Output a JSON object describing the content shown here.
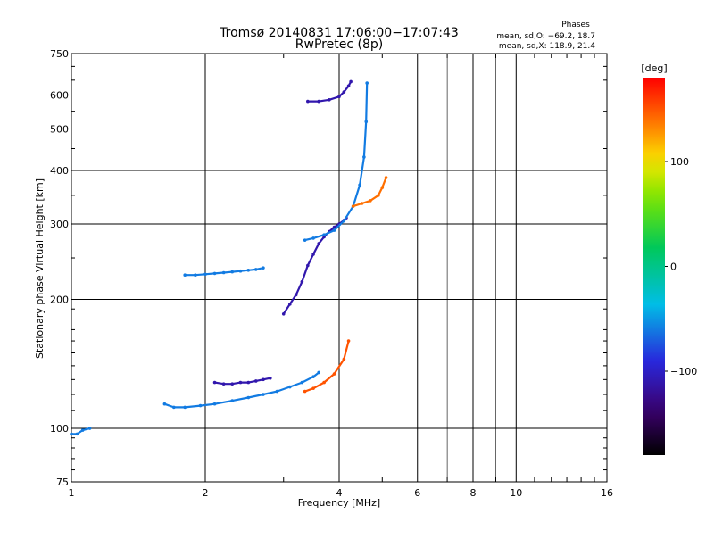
{
  "chart_data": {
    "type": "scatter",
    "title": "Tromsø 20140831 17:06:00−17:07:43",
    "subtitle": "RwPretec (8p)",
    "xlabel": "Frequency [MHz]",
    "ylabel": "Stationary phase Virtual Height [km]",
    "x_scale": "log",
    "y_scale": "log",
    "xlim": [
      1,
      16
    ],
    "ylim": [
      75,
      750
    ],
    "x_ticks": [
      1,
      2,
      4,
      6,
      8,
      10,
      16
    ],
    "x_tick_labels": [
      "1",
      "2",
      "4",
      "6",
      "8",
      "10",
      "16"
    ],
    "y_ticks": [
      75,
      100,
      200,
      300,
      400,
      500,
      600,
      750
    ],
    "y_tick_labels": [
      "75",
      "100",
      "200",
      "300",
      "400",
      "500",
      "600",
      "750"
    ],
    "grid": true,
    "stats_header": "Phases",
    "stats_lines": [
      "mean, sd,O: −69.2, 18.7",
      "mean, sd,X: 118.9, 21.4"
    ],
    "colorbar": {
      "label": "[deg]",
      "range": [
        -180,
        180
      ],
      "ticks": [
        100,
        0,
        -100
      ],
      "tick_labels": [
        "100",
        "0",
        "−100"
      ]
    },
    "traces": [
      {
        "name": "",
        "x": [
          1.0,
          1.03,
          1.06,
          1.1
        ],
        "y": [
          97,
          97,
          99,
          100
        ],
        "phase": -60
      },
      {
        "name": "",
        "x": [
          1.62,
          1.7,
          1.8,
          1.95,
          2.1,
          2.3,
          2.5,
          2.7,
          2.9,
          3.1,
          3.3,
          3.5,
          3.6
        ],
        "y": [
          114,
          112,
          112,
          113,
          114,
          116,
          118,
          120,
          122,
          125,
          128,
          132,
          135
        ],
        "phase": -60
      },
      {
        "name": "",
        "x": [
          3.0,
          3.1,
          3.2,
          3.3,
          3.4,
          3.5,
          3.6,
          3.7,
          3.8,
          3.9,
          4.0,
          4.1,
          4.15
        ],
        "y": [
          185,
          195,
          205,
          220,
          240,
          255,
          270,
          280,
          288,
          295,
          300,
          306,
          310
        ],
        "phase": -110
      },
      {
        "name": "",
        "x": [
          3.35,
          3.5,
          3.7,
          3.9,
          4.1,
          4.3,
          4.45,
          4.55,
          4.6,
          4.62
        ],
        "y": [
          275,
          278,
          283,
          290,
          305,
          330,
          370,
          430,
          520,
          640
        ],
        "phase": -60
      },
      {
        "name": "",
        "x": [
          3.35,
          3.5,
          3.7,
          3.9,
          4.1,
          4.2
        ],
        "y": [
          122,
          124,
          128,
          134,
          145,
          160
        ],
        "phase": 150
      },
      {
        "name": "",
        "x": [
          4.3,
          4.5,
          4.7,
          4.9,
          5.0,
          5.1
        ],
        "y": [
          330,
          335,
          340,
          350,
          365,
          385
        ],
        "phase": 140
      },
      {
        "name": "",
        "x": [
          3.4,
          3.6,
          3.8,
          4.0,
          4.1,
          4.2,
          4.25
        ],
        "y": [
          580,
          580,
          585,
          595,
          610,
          630,
          645
        ],
        "phase": -110
      },
      {
        "name": "",
        "x": [
          1.8,
          1.9,
          2.0,
          2.1,
          2.2,
          2.3,
          2.4,
          2.5,
          2.6,
          2.7
        ],
        "y": [
          228,
          228,
          229,
          230,
          231,
          232,
          233,
          234,
          235,
          237
        ],
        "phase": -60
      },
      {
        "name": "",
        "x": [
          2.1,
          2.2,
          2.3,
          2.4,
          2.5,
          2.6,
          2.7,
          2.8
        ],
        "y": [
          128,
          127,
          127,
          128,
          128,
          129,
          130,
          131
        ],
        "phase": -110
      }
    ]
  }
}
